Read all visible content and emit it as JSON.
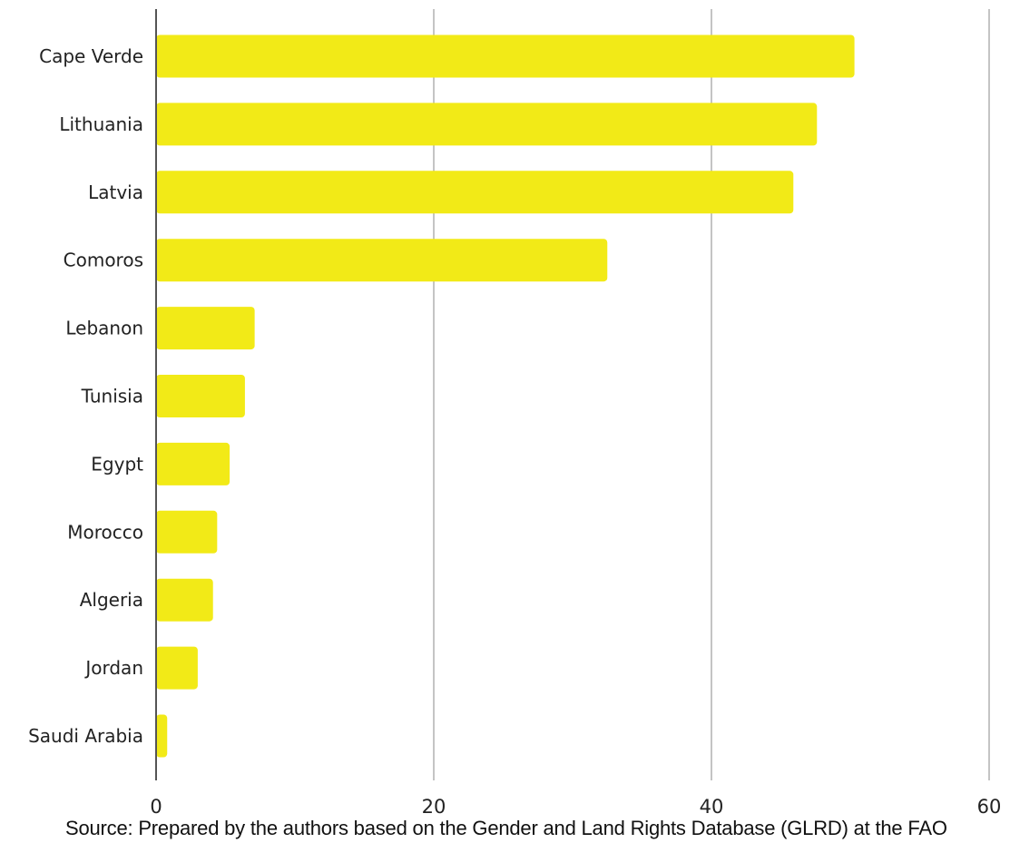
{
  "chart_data": {
    "type": "bar",
    "orientation": "horizontal",
    "categories": [
      "Cape Verde",
      "Lithuania",
      "Latvia",
      "Comoros",
      "Lebanon",
      "Tunisia",
      "Egypt",
      "Morocco",
      "Algeria",
      "Jordan",
      "Saudi Arabia"
    ],
    "values": [
      50.3,
      47.6,
      45.9,
      32.5,
      7.1,
      6.4,
      5.3,
      4.4,
      4.1,
      3.0,
      0.8
    ],
    "xlim": [
      0,
      60
    ],
    "xticks": [
      0,
      20,
      40,
      60
    ],
    "xtick_labels": [
      "0",
      "20",
      "40",
      "60"
    ],
    "grid": "vertical",
    "legend": "none",
    "title": "",
    "xlabel": "",
    "ylabel": "",
    "bar_color": "#f2ea17",
    "grid_color": "#c4c4c4",
    "axis_color": "#555555"
  },
  "source_note": "Source: Prepared by the authors based on the Gender and Land Rights Database (GLRD) at the FAO"
}
